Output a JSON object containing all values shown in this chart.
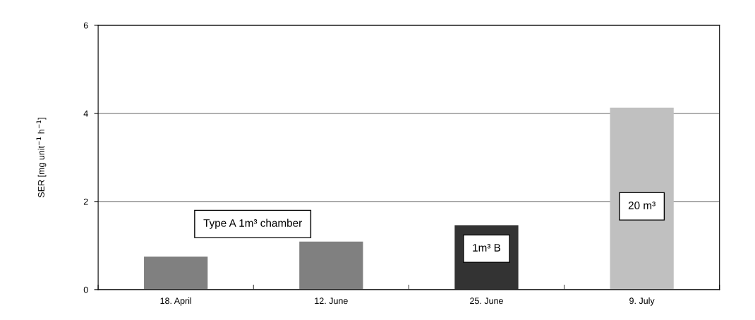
{
  "chart_data": {
    "type": "bar",
    "ylabel": "SER [mg unit$^{−1}$ h$^{−1}$]",
    "categories": [
      "18. April",
      "12. June",
      "25. June",
      "9. July"
    ],
    "values": [
      0.75,
      1.09,
      1.46,
      4.13
    ],
    "colors": [
      "#808080",
      "#808080",
      "#333333",
      "#c0c0c0"
    ],
    "ylim": [
      0,
      6
    ],
    "yticks": [
      0,
      2,
      4,
      6
    ],
    "grid": "y",
    "annotations": [
      "Type A 1m³ chamber",
      "1m³ B",
      "20 m³"
    ]
  }
}
